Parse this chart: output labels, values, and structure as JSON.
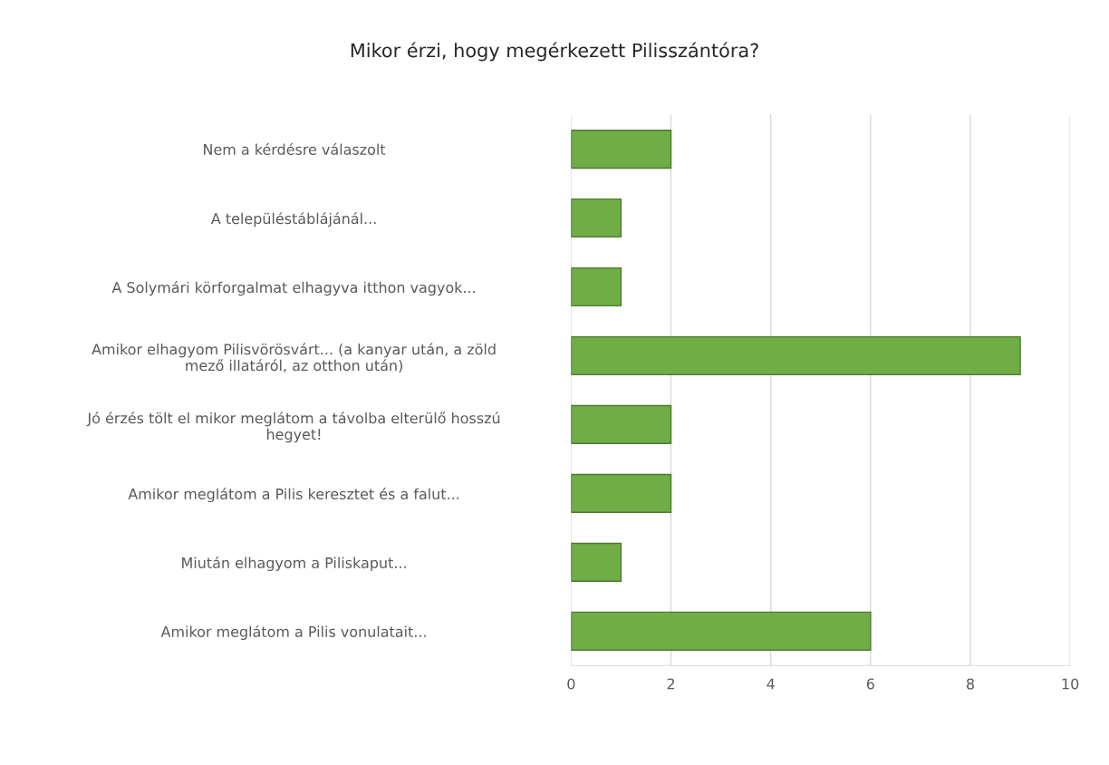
{
  "chart_data": {
    "type": "bar",
    "orientation": "horizontal",
    "title": "Mikor érzi, hogy megérkezett Pilisszántóra?",
    "categories": [
      "Nem a kérdésre válaszolt",
      "A településtáblájánál...",
      "A Solymári körforgalmat elhagyva itthon vagyok...",
      "Amikor elhagyom Pilisvörösvárt... (a kanyar után, a zöld\nmező illatáról, az otthon után)",
      "Jó érzés tölt el mikor meglátom a távolba elterülő hosszú\nhegyet!",
      "Amikor meglátom a Pilis keresztet és a falut...",
      "Miután elhagyom a Piliskaput...",
      "Amikor meglátom a Pilis vonulatait..."
    ],
    "values": [
      2,
      1,
      1,
      9,
      2,
      2,
      1,
      6
    ],
    "color": "#70ad47",
    "xlim": [
      0,
      10
    ],
    "xticks": [
      0,
      2,
      4,
      6,
      8,
      10
    ],
    "grid": "x",
    "legend": false
  }
}
